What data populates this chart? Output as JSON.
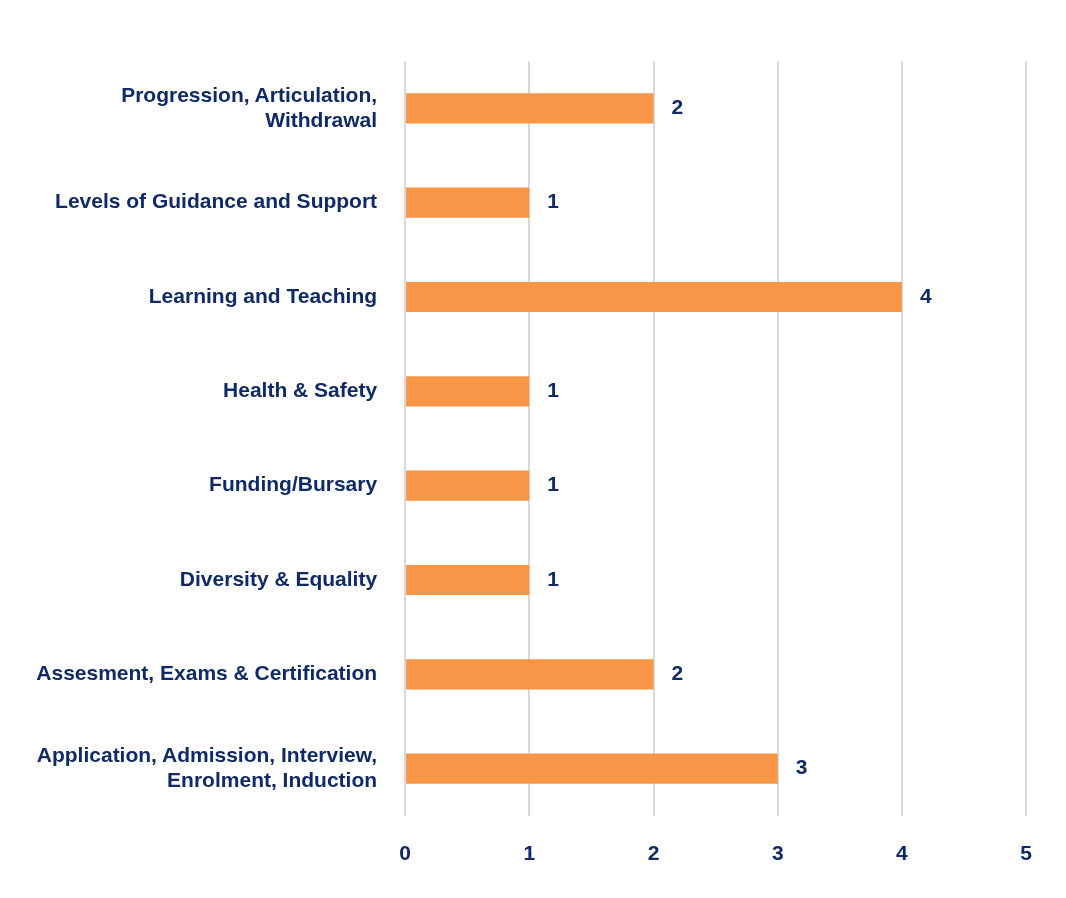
{
  "chart_data": {
    "type": "bar",
    "orientation": "horizontal",
    "categories": [
      "Progression, Articulation, Withdrawal",
      "Levels of Guidance and Support",
      "Learning and Teaching",
      "Health & Safety",
      "Funding/Bursary",
      "Diversity & Equality",
      "Assesment, Exams & Certification",
      "Application, Admission, Interview, Enrolment, Induction"
    ],
    "values": [
      2,
      1,
      4,
      1,
      1,
      1,
      2,
      3
    ],
    "color": "#f79646",
    "xlim": [
      0,
      5
    ],
    "xticks": [
      0,
      1,
      2,
      3,
      4,
      5
    ],
    "grid": "x",
    "data_labels": true,
    "legend": false
  }
}
